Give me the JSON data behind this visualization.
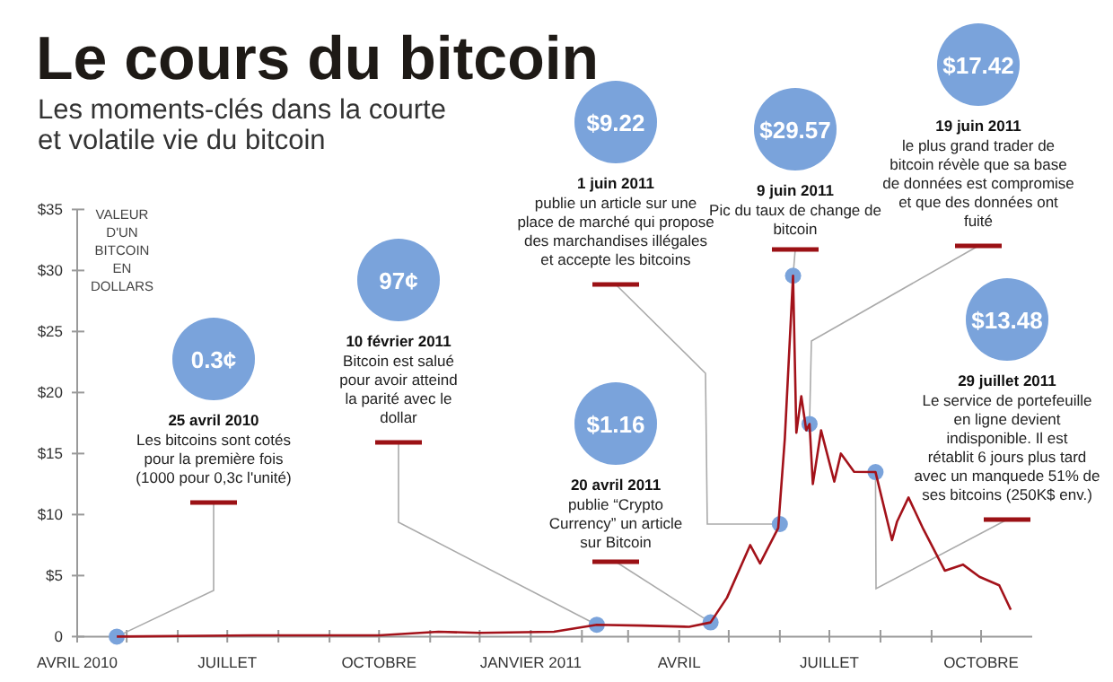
{
  "chart_data": {
    "type": "line",
    "title": "Le cours du bitcoin",
    "subtitle": "Les moments-clés dans la courte\net volatile vie du bitcoin",
    "ylabel": "VALEUR\nD'UN\nBITCOIN\nEN\nDOLLARS",
    "x": [
      "2010-04-25",
      "2010-07-17",
      "2010-08-15",
      "2010-10-01",
      "2010-11-06",
      "2010-12-01",
      "2011-01-15",
      "2011-02-10",
      "2011-03-09",
      "2011-04-07",
      "2011-04-20",
      "2011-04-30",
      "2011-05-14",
      "2011-05-20",
      "2011-05-31",
      "2011-06-04",
      "2011-06-09",
      "2011-06-11",
      "2011-06-14",
      "2011-06-17",
      "2011-06-19",
      "2011-06-21",
      "2011-06-26",
      "2011-07-04",
      "2011-07-08",
      "2011-07-16",
      "2011-07-29",
      "2011-08-08",
      "2011-08-11",
      "2011-08-18",
      "2011-08-27",
      "2011-09-09",
      "2011-09-20",
      "2011-09-30",
      "2011-10-12",
      "2011-10-19"
    ],
    "series": [
      {
        "color": "#a3121a",
        "values": [
          0,
          0.1,
          0.1,
          0.1,
          0.4,
          0.3,
          0.4,
          0.97,
          0.9,
          0.8,
          1.16,
          3.2,
          7.5,
          6.0,
          8.9,
          16.2,
          29.57,
          16.7,
          19.7,
          16.9,
          17.42,
          12.5,
          16.9,
          12.7,
          15,
          13.5,
          13.48,
          7.9,
          9.4,
          11.4,
          8.8,
          5.4,
          5.9,
          4.9,
          4.2,
          2.2
        ]
      }
    ],
    "xlim": [
      "2010-04-01",
      "2011-11-01"
    ],
    "xticks": [
      {
        "value": "2010-04-01",
        "label": "AVRIL 2010"
      },
      {
        "value": "2010-05-01",
        "label": null
      },
      {
        "value": "2010-06-01",
        "label": null
      },
      {
        "value": "2010-07-01",
        "label": "JUILLET"
      },
      {
        "value": "2010-08-01",
        "label": null
      },
      {
        "value": "2010-09-01",
        "label": null
      },
      {
        "value": "2010-10-01",
        "label": "OCTOBRE"
      },
      {
        "value": "2010-11-01",
        "label": null
      },
      {
        "value": "2010-12-01",
        "label": null
      },
      {
        "value": "2011-01-01",
        "label": "JANVIER 2011"
      },
      {
        "value": "2011-02-01",
        "label": null
      },
      {
        "value": "2011-03-01",
        "label": null
      },
      {
        "value": "2011-04-01",
        "label": "AVRIL"
      },
      {
        "value": "2011-05-01",
        "label": null
      },
      {
        "value": "2011-06-01",
        "label": null
      },
      {
        "value": "2011-07-01",
        "label": "JUILLET"
      },
      {
        "value": "2011-08-01",
        "label": null
      },
      {
        "value": "2011-09-01",
        "label": null
      },
      {
        "value": "2011-10-01",
        "label": "OCTOBRE"
      }
    ],
    "ylim": [
      0,
      35
    ],
    "yticks": [
      {
        "value": 0,
        "label": "0"
      },
      {
        "value": 5,
        "label": "$5"
      },
      {
        "value": 10,
        "label": "$10"
      },
      {
        "value": 15,
        "label": "$15"
      },
      {
        "value": 20,
        "label": "$20"
      },
      {
        "value": 25,
        "label": "$25"
      },
      {
        "value": 30,
        "label": "$30"
      },
      {
        "value": 35,
        "label": "$35"
      }
    ],
    "grid": false,
    "marker": "none",
    "line_style": "solid",
    "annotations": [
      "0.3¢",
      "25 avril 2010",
      {
        "text": "Les bitcoins sont cotés pour la première fois (1000 pour 0,3c l'unité)",
        "x": "2010-04-25",
        "y": 0
      },
      "97¢",
      "10 février 2011",
      {
        "text": "Bitcoin est salué pour avoir atteind la parité avec le dollar",
        "x": "2011-02-10",
        "y": 0.97
      },
      "$1.16",
      "20 avril 2011",
      {
        "text": "publie “Crypto Currency” un article sur Bitcoin",
        "x": "2011-04-20",
        "y": 1.16
      },
      "$9.22",
      "1 juin 2011",
      {
        "text": "publie un article sur une place de marché qui propose des marchandises illégales et accepte les bitcoins",
        "x": "2011-06-01",
        "y": 9.22
      },
      "$29.57",
      "9 juin 2011",
      {
        "text": "Pic du taux de change de bitcoin",
        "x": "2011-06-09",
        "y": 29.57
      },
      "$17.42",
      "19 juin 2011",
      {
        "text": "le plus grand trader de bitcoin révèle que sa base de données est compromise et que des données ont fuité",
        "x": "2011-06-19",
        "y": 17.42
      },
      "$13.48",
      "29 juillet 2011",
      {
        "text": "Le service de portefeuille en ligne devient indisponible. Il est rétablit 6 jours plus tard avec un manquede 51% de ses bitcoins (250K$ env.)",
        "x": "2011-07-29",
        "y": 13.48
      }
    ]
  }
}
